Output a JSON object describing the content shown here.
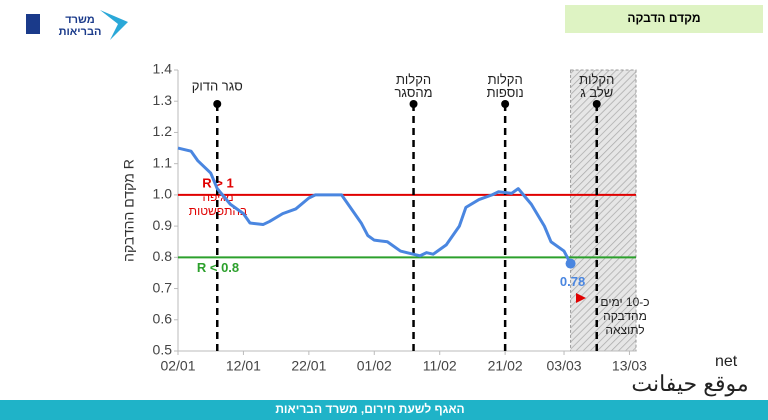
{
  "header": {
    "title": "מקדם הדבקה",
    "logo": [
      "משרד",
      "הבריאות"
    ]
  },
  "footer": "האגף לשעת חירום, משרד הבריאות",
  "watermark": [
    "net",
    "موقع حيفانت"
  ],
  "chart_data": {
    "type": "line",
    "y_label": "מקדם ההדבקה R",
    "xlim": [
      0,
      70
    ],
    "xticks": [
      {
        "value": 0,
        "label": "02/01"
      },
      {
        "value": 10,
        "label": "12/01"
      },
      {
        "value": 20,
        "label": "22/01"
      },
      {
        "value": 30,
        "label": "01/02"
      },
      {
        "value": 40,
        "label": "11/02"
      },
      {
        "value": 50,
        "label": "21/02"
      },
      {
        "value": 59,
        "label": "03/03"
      },
      {
        "value": 69,
        "label": "13/03"
      }
    ],
    "ylim": [
      0.5,
      1.4
    ],
    "yticks": [
      0.5,
      0.6,
      0.7,
      0.8,
      0.9,
      {
        "value": 1,
        "label": "1.0"
      },
      1.1,
      1.2,
      1.3,
      1.4
    ],
    "series": [
      {
        "color": "#4a86e0",
        "x": [
          0,
          2,
          3,
          5,
          6,
          8,
          10,
          11,
          13,
          14,
          16,
          18,
          20,
          21,
          23,
          25,
          26,
          28,
          29,
          30,
          32,
          34,
          35,
          37,
          38,
          39,
          41,
          43,
          44,
          46,
          48,
          49,
          51,
          52,
          54,
          56,
          57,
          59,
          60
        ],
        "values": [
          1.15,
          1.14,
          1.11,
          1.07,
          1.02,
          0.97,
          0.94,
          0.91,
          0.905,
          0.915,
          0.94,
          0.955,
          0.99,
          1.0,
          1.0,
          1.0,
          0.97,
          0.91,
          0.87,
          0.855,
          0.85,
          0.82,
          0.815,
          0.805,
          0.815,
          0.81,
          0.84,
          0.9,
          0.96,
          0.985,
          1.0,
          1.01,
          1.005,
          1.02,
          0.97,
          0.9,
          0.85,
          0.82,
          0.78
        ]
      }
    ],
    "ref_lines": [
      {
        "value": 1,
        "color": "#e00000",
        "lines": [
          "R > 1",
          "מגיפה",
          "בהתפשטות"
        ]
      },
      {
        "value": 0.8,
        "color": "#2ca02c",
        "lines": [
          "R < 0.8"
        ]
      }
    ],
    "events": [
      {
        "x": 6,
        "lines": [
          "סגר הדוק"
        ]
      },
      {
        "x": 36,
        "lines": [
          "הקלות",
          "מהסגר"
        ]
      },
      {
        "x": 50,
        "lines": [
          "הקלות",
          "נוספות"
        ]
      },
      {
        "x": 64,
        "lines": [
          "הקלות",
          "שלב ג"
        ]
      }
    ],
    "shade": [
      60,
      70
    ],
    "note": [
      "כ-10 ימים",
      "מהדבקה",
      "לתוצאה"
    ]
  }
}
